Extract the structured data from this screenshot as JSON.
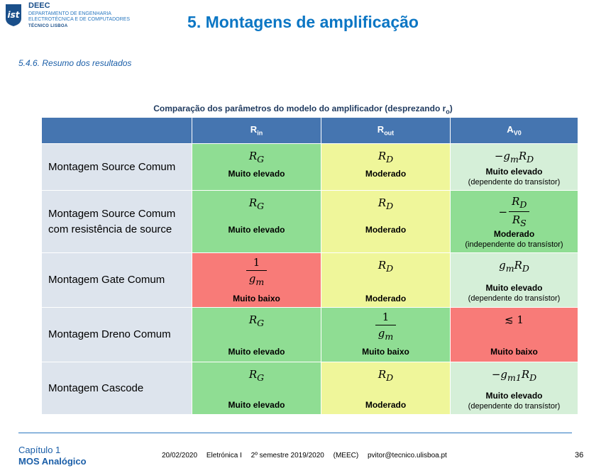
{
  "header": {
    "institution": "DEEC",
    "department_line1": "DEPARTAMENTO DE ENGENHARIA",
    "department_line2": "ELECTROTÉCNICA E DE COMPUTADORES",
    "school": "TÉCNICO LISBOA",
    "logo_text": "ist",
    "title": "5. Montagens de amplificação"
  },
  "subsection": "5.4.6. Resumo dos resultados",
  "table": {
    "caption": "Comparação dos parâmetros do modelo do amplificador (desprezando r",
    "caption_sub": "o",
    "caption_end": ")",
    "headers": [
      {
        "main": "R",
        "sub": "in"
      },
      {
        "main": "R",
        "sub": "out"
      },
      {
        "main": "A",
        "sub": "V0"
      }
    ],
    "rows": [
      {
        "label": "Montagem Source Comum",
        "rin": {
          "expr": "RG",
          "label": "Muito elevado"
        },
        "rout": {
          "expr": "RD",
          "label": "Moderado"
        },
        "av": {
          "expr": "-gmRD",
          "label": "Muito elevado",
          "note": "(dependente do transístor)"
        }
      },
      {
        "label_line1": "Montagem Source Comum",
        "label_line2": "com resistência de source",
        "rin": {
          "expr": "RG",
          "label": "Muito elevado"
        },
        "rout": {
          "expr": "RD",
          "label": "Moderado"
        },
        "av": {
          "expr": "-RD/RS",
          "label": "Moderado",
          "note": "(independente do transístor)"
        }
      },
      {
        "label": "Montagem Gate Comum",
        "rin": {
          "expr": "1/gm",
          "label": "Muito baixo"
        },
        "rout": {
          "expr": "RD",
          "label": "Moderado"
        },
        "av": {
          "expr": "gmRD",
          "label": "Muito elevado",
          "note": "(dependente do transístor)"
        }
      },
      {
        "label": "Montagem Dreno Comum",
        "rin": {
          "expr": "RG",
          "label": "Muito elevado"
        },
        "rout": {
          "expr": "1/gm",
          "label": "Muito baixo"
        },
        "av": {
          "expr": "≲ 1",
          "label": "Muito baixo"
        }
      },
      {
        "label": "Montagem Cascode",
        "rin": {
          "expr": "RG",
          "label": "Muito elevado"
        },
        "rout": {
          "expr": "RD",
          "label": "Moderado"
        },
        "av": {
          "expr": "-gm1RD",
          "label": "Muito elevado",
          "note": "(dependente do transístor)"
        }
      }
    ]
  },
  "colors": {
    "header_blue": "#4575b0",
    "row_label_bg": "#dde4ed",
    "green": "#8fdd93",
    "light_green": "#d5efd8",
    "yellow": "#eff69a",
    "red": "#f87b78",
    "title_blue": "#0b76c4"
  },
  "footer": {
    "chapter": "Capítulo 1",
    "topic": "MOS Analógico",
    "date": "20/02/2020",
    "course": "Eletrónica I",
    "semester": "2º semestre 2019/2020",
    "program": "(MEEC)",
    "email": "pvitor@tecnico.ulisboa.pt",
    "page": "36"
  }
}
